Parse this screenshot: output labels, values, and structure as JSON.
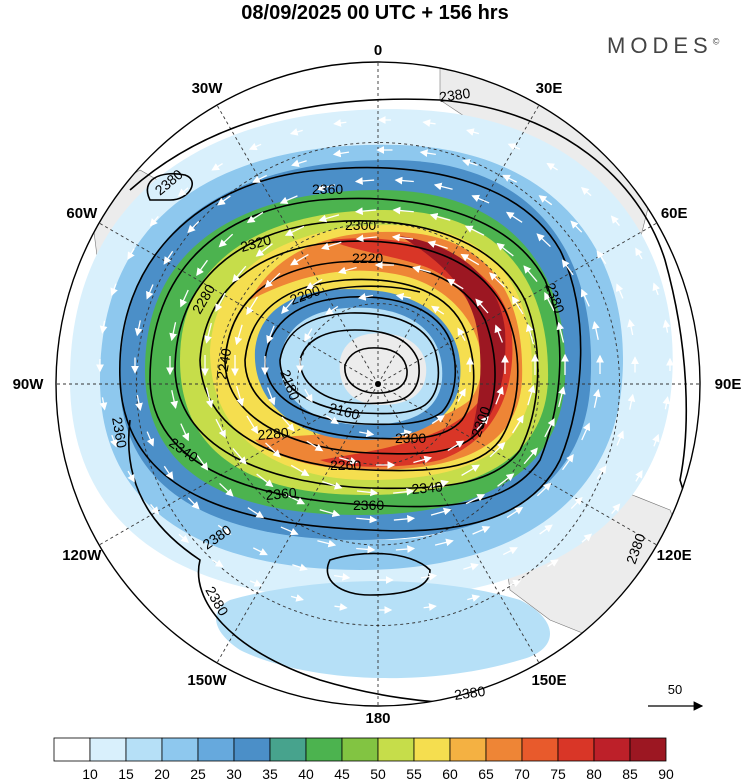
{
  "title": "08/09/2025  00 UTC  + 156 hrs",
  "brand": "MODES",
  "brand_mark": "©",
  "longitude_labels": [
    {
      "text": "0",
      "lon": 0
    },
    {
      "text": "30E",
      "lon": 30
    },
    {
      "text": "60E",
      "lon": 60
    },
    {
      "text": "90E",
      "lon": 90
    },
    {
      "text": "120E",
      "lon": 120
    },
    {
      "text": "150E",
      "lon": 150
    },
    {
      "text": "180",
      "lon": 180
    },
    {
      "text": "150W",
      "lon": -150
    },
    {
      "text": "120W",
      "lon": -120
    },
    {
      "text": "90W",
      "lon": -90
    },
    {
      "text": "60W",
      "lon": -60
    },
    {
      "text": "30W",
      "lon": -30
    }
  ],
  "height_contour_labels": [
    "2380",
    "2360",
    "2340",
    "2320",
    "2300",
    "2280",
    "2260",
    "2240",
    "2220",
    "2200",
    "2180",
    "2160"
  ],
  "reference_vector": {
    "label": "50"
  },
  "colorbar": {
    "colors": [
      "#ffffff",
      "#d9f0fc",
      "#b6e0f7",
      "#8ec8ee",
      "#66a9dd",
      "#4b8fc8",
      "#47a38d",
      "#4cb34f",
      "#82c442",
      "#c6dd4a",
      "#f5de4f",
      "#f4b142",
      "#ee8536",
      "#e85a2c",
      "#d93627",
      "#bd2029",
      "#9c1722"
    ],
    "labels": [
      "10",
      "15",
      "20",
      "25",
      "30",
      "35",
      "40",
      "45",
      "50",
      "55",
      "60",
      "65",
      "70",
      "75",
      "80",
      "85",
      "90"
    ]
  },
  "map_style": {
    "land": "#ececec",
    "grid": "#333333",
    "contour": "#000000",
    "arrow": "#ffffff"
  }
}
